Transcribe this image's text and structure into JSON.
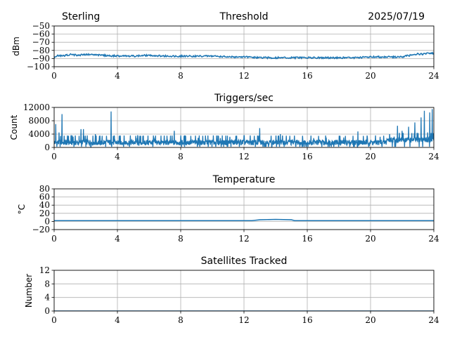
{
  "header": {
    "station": "Sterling",
    "date": "2025/07/19"
  },
  "chart_data": [
    {
      "type": "line",
      "title": "Threshold",
      "xlabel": "",
      "ylabel": "dBm",
      "xlim": [
        0,
        24
      ],
      "ylim": [
        -100,
        -50
      ],
      "xticks": [
        0,
        4,
        8,
        12,
        16,
        20,
        24
      ],
      "yticks": [
        -100,
        -90,
        -80,
        -70,
        -60,
        -50
      ],
      "ytick_labels": [
        "−100",
        "−90",
        "−80",
        "−70",
        "−60",
        "−50"
      ],
      "grid": true,
      "color": "#1f77b4",
      "series": [
        {
          "x": [
            0,
            0.25,
            0.5,
            1,
            1.5,
            2,
            3,
            4,
            5,
            6,
            7,
            8,
            9,
            10,
            11,
            12,
            13,
            14,
            15,
            16,
            17,
            18,
            19,
            20,
            21,
            22,
            22.5,
            23,
            23.3,
            23.7,
            24
          ],
          "y": [
            -89,
            -86,
            -87,
            -85,
            -86,
            -85,
            -86,
            -87,
            -87,
            -86,
            -87,
            -87,
            -87,
            -87,
            -88,
            -88,
            -89,
            -89,
            -89,
            -89,
            -89,
            -89,
            -89,
            -88,
            -88,
            -88,
            -86,
            -84,
            -85,
            -83,
            -84
          ]
        }
      ]
    },
    {
      "type": "line",
      "title": "Triggers/sec",
      "xlabel": "",
      "ylabel": "Count",
      "xlim": [
        0,
        24
      ],
      "ylim": [
        0,
        12000
      ],
      "xticks": [
        0,
        4,
        8,
        12,
        16,
        20,
        24
      ],
      "yticks": [
        0,
        4000,
        8000,
        12000
      ],
      "ytick_labels": [
        "0",
        "4000",
        "8000",
        "12000"
      ],
      "grid": true,
      "color": "#1f77b4",
      "baseline": 1500,
      "spikes": [
        [
          0.1,
          7000
        ],
        [
          0.3,
          4500
        ],
        [
          0.5,
          10000
        ],
        [
          0.9,
          3500
        ],
        [
          1.2,
          3200
        ],
        [
          1.7,
          5500
        ],
        [
          1.85,
          5500
        ],
        [
          2.6,
          4000
        ],
        [
          3.6,
          10800
        ],
        [
          5.2,
          2800
        ],
        [
          6.3,
          3000
        ],
        [
          7.6,
          5000
        ],
        [
          9.1,
          2900
        ],
        [
          10.5,
          2800
        ],
        [
          11.1,
          3200
        ],
        [
          13.0,
          5800
        ],
        [
          14.3,
          4000
        ],
        [
          14.9,
          3500
        ],
        [
          16.4,
          2800
        ],
        [
          17.2,
          3000
        ],
        [
          18.3,
          3000
        ],
        [
          19.2,
          4800
        ],
        [
          19.8,
          3000
        ],
        [
          20.6,
          3200
        ],
        [
          21.2,
          4000
        ],
        [
          21.7,
          6500
        ],
        [
          22.0,
          5000
        ],
        [
          22.4,
          6200
        ],
        [
          22.8,
          7500
        ],
        [
          23.2,
          9000
        ],
        [
          23.4,
          11000
        ],
        [
          23.6,
          4500
        ],
        [
          23.75,
          10500
        ],
        [
          23.9,
          11500
        ]
      ]
    },
    {
      "type": "line",
      "title": "Temperature",
      "xlabel": "",
      "ylabel": "°C",
      "xlim": [
        0,
        24
      ],
      "ylim": [
        -20,
        80
      ],
      "xticks": [
        0,
        4,
        8,
        12,
        16,
        20,
        24
      ],
      "yticks": [
        -20,
        0,
        20,
        40,
        60,
        80
      ],
      "ytick_labels": [
        "−20",
        "0",
        "20",
        "40",
        "60",
        "80"
      ],
      "grid": true,
      "color": "#1f77b4",
      "series": [
        {
          "x": [
            0,
            12.5,
            13,
            14,
            15,
            15.2,
            24
          ],
          "y": [
            2,
            2,
            4,
            5,
            4,
            2,
            2
          ]
        }
      ]
    },
    {
      "type": "line",
      "title": "Satellites Tracked",
      "xlabel": "",
      "ylabel": "Number",
      "xlim": [
        0,
        24
      ],
      "ylim": [
        0,
        12
      ],
      "xticks": [
        0,
        4,
        8,
        12,
        16,
        20,
        24
      ],
      "yticks": [
        0,
        4,
        8,
        12
      ],
      "ytick_labels": [
        "0",
        "4",
        "8",
        "12"
      ],
      "grid": true,
      "color": "#1f77b4",
      "series": [
        {
          "x": [
            0,
            24
          ],
          "y": [
            0,
            0
          ]
        }
      ]
    }
  ]
}
